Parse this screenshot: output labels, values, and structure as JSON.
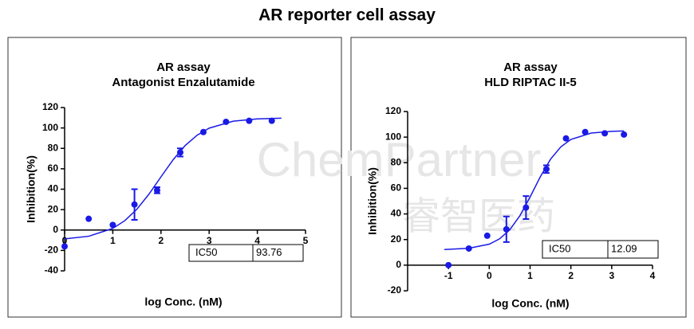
{
  "title": "AR reporter cell assay",
  "watermark": [
    "ChemPartner",
    "睿智医药"
  ],
  "chart_data": [
    {
      "type": "scatter",
      "title": [
        "AR assay",
        "Antagonist Enzalutamide"
      ],
      "x_label": "log Conc. (nM)",
      "y_label": "Inhibition(%)",
      "x": [
        0,
        0.5,
        1,
        1.45,
        1.92,
        2.4,
        2.88,
        3.35,
        3.83,
        4.3
      ],
      "values": [
        -16,
        11,
        5,
        25,
        39,
        76,
        96,
        106,
        107,
        107
      ],
      "errors": [
        null,
        null,
        null,
        15,
        3,
        4,
        null,
        null,
        null,
        null
      ],
      "color": "#1a1ae6",
      "curve": {
        "x": [
          0,
          0.5,
          1,
          1.25,
          1.5,
          1.75,
          2,
          2.25,
          2.5,
          2.75,
          3,
          3.5,
          4,
          4.5
        ],
        "values": [
          -8.7,
          -6.1,
          1.6,
          9.2,
          20.4,
          35.1,
          52.1,
          68.7,
          82.7,
          92.9,
          99.8,
          106.6,
          108.9,
          109.6
        ]
      },
      "xlim": [
        0,
        5
      ],
      "xticks": [
        0,
        1,
        2,
        3,
        4,
        5
      ],
      "ylim": [
        -40,
        120
      ],
      "yticks": [
        -40,
        -20,
        0,
        20,
        40,
        60,
        80,
        100,
        120
      ],
      "table": [
        "IC50",
        "93.76"
      ]
    },
    {
      "type": "scatter",
      "title": [
        "AR assay",
        "HLD RIPTAC II-5"
      ],
      "x_label": "log Conc. (nM)",
      "y_label": "Inhibition(%)",
      "x": [
        -1,
        -0.5,
        -0.05,
        0.42,
        0.9,
        1.4,
        1.88,
        2.35,
        2.83,
        3.3
      ],
      "values": [
        0,
        13,
        23,
        28,
        45,
        75,
        99,
        104,
        103,
        102
      ],
      "errors": [
        null,
        null,
        null,
        10,
        9,
        3,
        null,
        null,
        null,
        null
      ],
      "color": "#1a1ae6",
      "curve": {
        "x": [
          -1.1,
          -0.5,
          0,
          0.25,
          0.5,
          0.75,
          1,
          1.25,
          1.5,
          1.75,
          2,
          2.5,
          3,
          3.3
        ],
        "values": [
          12.2,
          13.2,
          16.4,
          20.5,
          27.5,
          38.6,
          53.2,
          69.0,
          82.7,
          92.3,
          98.2,
          103.2,
          104.5,
          104.8
        ]
      },
      "xlim": [
        -2,
        4
      ],
      "xticks": [
        -1,
        0,
        1,
        2,
        3,
        4
      ],
      "ylim": [
        -20,
        120
      ],
      "yticks": [
        -20,
        0,
        20,
        40,
        60,
        80,
        100,
        120
      ],
      "table": [
        "IC50",
        "12.09"
      ]
    }
  ]
}
